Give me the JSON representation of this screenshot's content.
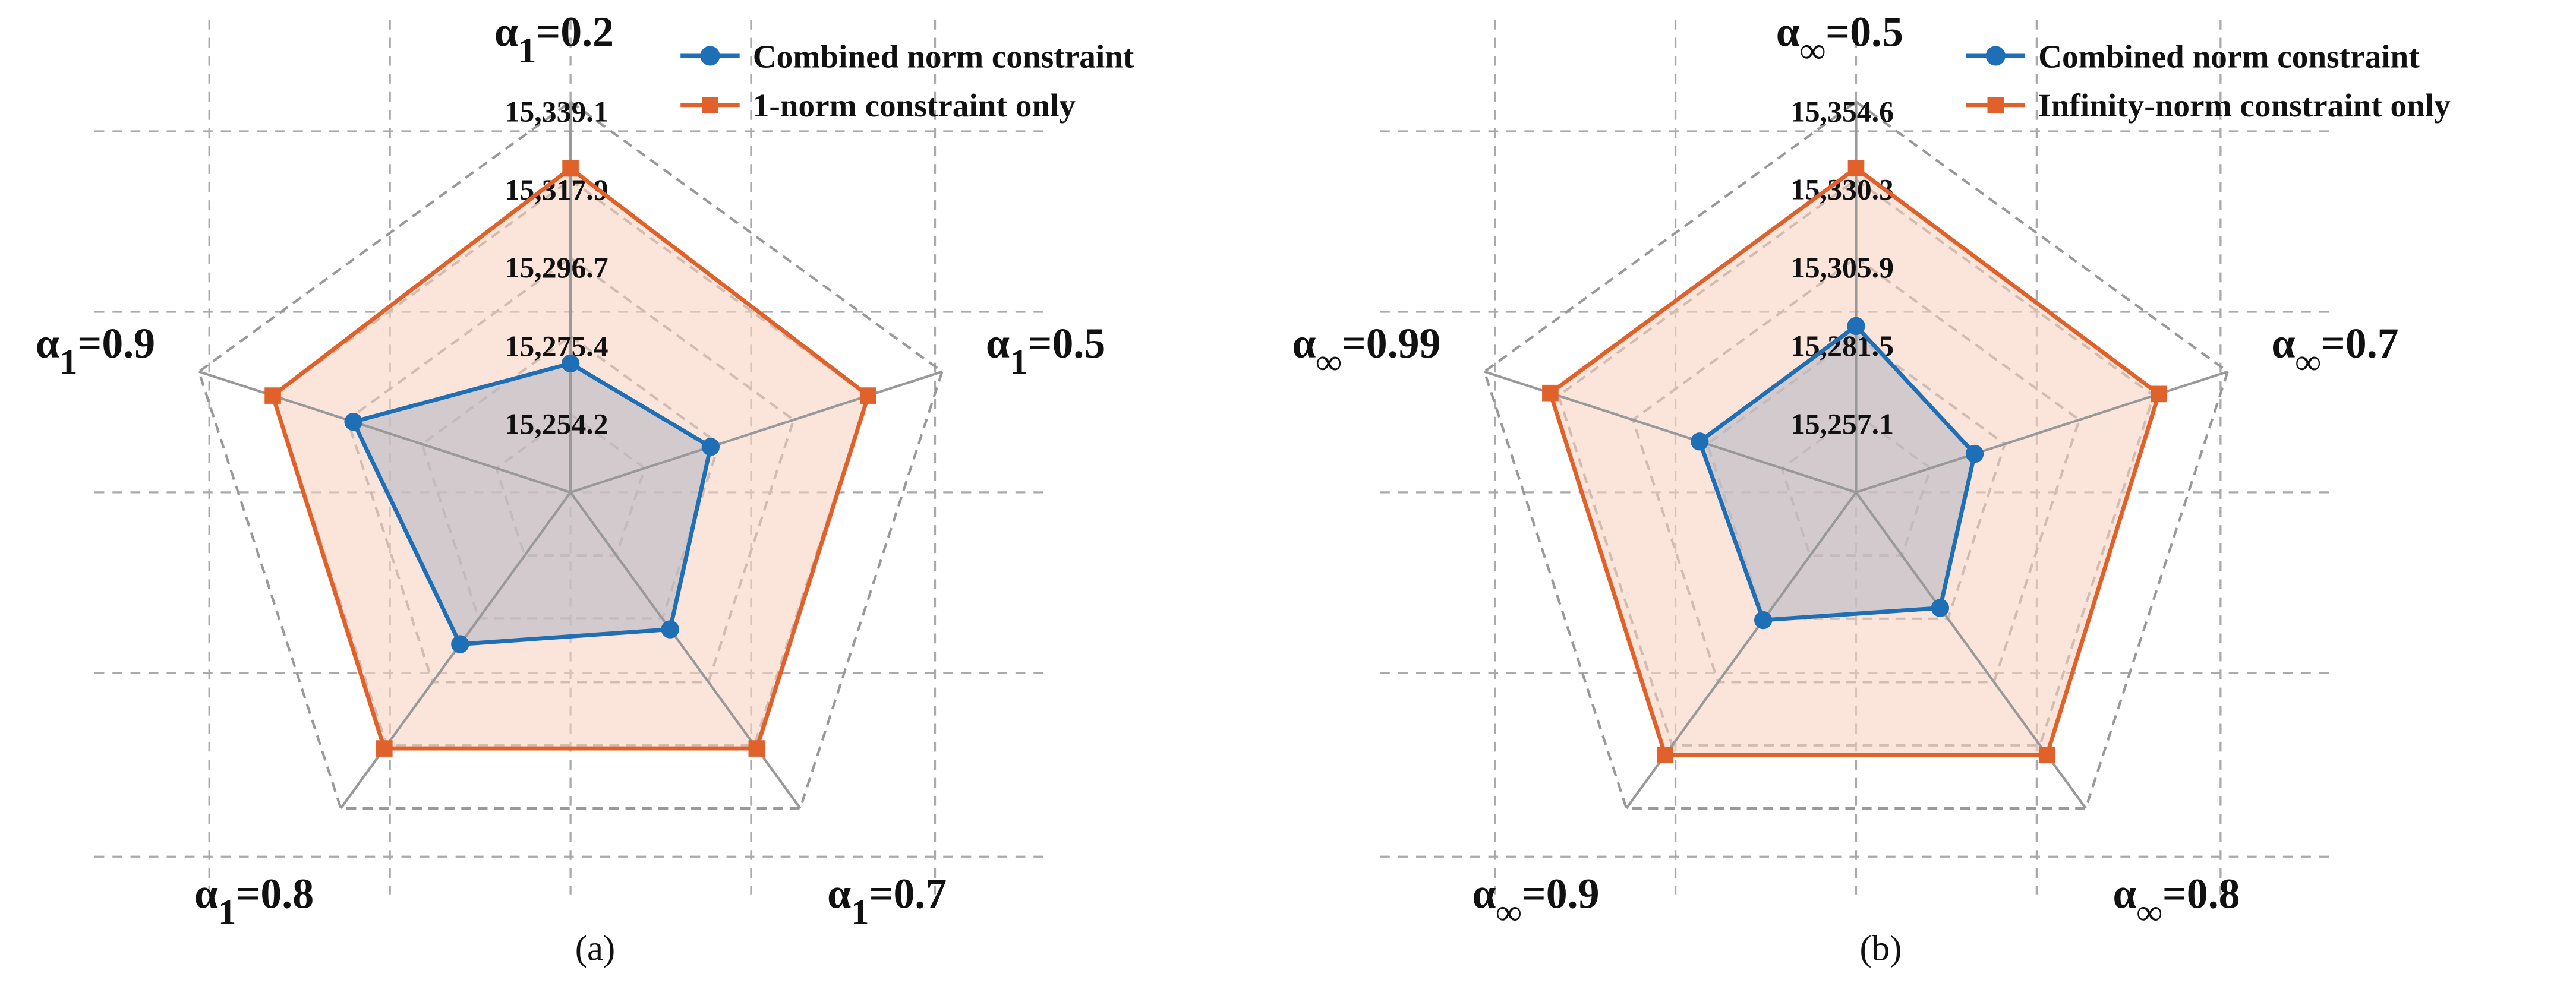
{
  "chart_data": [
    {
      "type": "radar",
      "caption": "(a)",
      "categories": [
        "α1=0.2",
        "α1=0.5",
        "α1=0.7",
        "α1=0.8",
        "α1=0.9"
      ],
      "rlim": [
        15233.0,
        15339.1
      ],
      "rticks": [
        {
          "value": 15254.2,
          "label": "15,254.2"
        },
        {
          "value": 15275.4,
          "label": "15,275.4"
        },
        {
          "value": 15296.7,
          "label": "15,296.7"
        },
        {
          "value": 15317.9,
          "label": "15,317.9"
        },
        {
          "value": 15339.1,
          "label": "15,339.1"
        }
      ],
      "legend": "upper right",
      "series": [
        {
          "name": "Combined norm constraint",
          "color": "#1f6fb7",
          "fill": "#b9b9c6",
          "marker": "circle",
          "values": [
            15268,
            15273,
            15279,
            15284,
            15295
          ]
        },
        {
          "name": "1-norm constraint only",
          "color": "#e0622a",
          "fill": "#f8d2c0",
          "marker": "square",
          "values": [
            15321,
            15318,
            15319,
            15319,
            15318
          ]
        }
      ]
    },
    {
      "type": "radar",
      "caption": "(b)",
      "categories": [
        "α∞=0.5",
        "α∞=0.7",
        "α∞=0.8",
        "α∞=0.9",
        "α∞=0.99"
      ],
      "rlim": [
        15232.7,
        15354.6
      ],
      "rticks": [
        {
          "value": 15257.1,
          "label": "15,257.1"
        },
        {
          "value": 15281.5,
          "label": "15,281.5"
        },
        {
          "value": 15305.9,
          "label": "15,305.9"
        },
        {
          "value": 15330.3,
          "label": "15,330.3"
        },
        {
          "value": 15354.6,
          "label": "15,354.6"
        }
      ],
      "legend": "upper right",
      "series": [
        {
          "name": "Combined norm constraint",
          "color": "#1f6fb7",
          "fill": "#b9b9c6",
          "marker": "circle",
          "values": [
            15284.6,
            15271.6,
            15277.3,
            15282,
            15284
          ]
        },
        {
          "name": "Infinity-norm constraint only",
          "color": "#e0622a",
          "fill": "#f8d2c0",
          "marker": "square",
          "values": [
            15333.9,
            15332,
            15334,
            15334,
            15333
          ]
        }
      ]
    }
  ]
}
